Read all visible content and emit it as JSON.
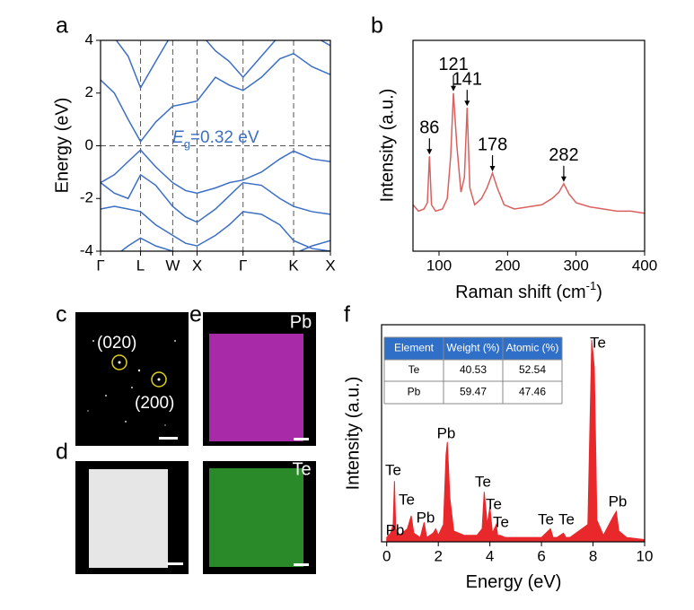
{
  "panel_labels": [
    "a",
    "b",
    "c",
    "d",
    "e",
    "f"
  ],
  "images": {
    "c": {
      "labels": [
        "(020)",
        "(200)"
      ]
    },
    "e": {
      "labels": [
        "Pb",
        "Te"
      ]
    }
  },
  "chart_data": [
    {
      "type": "line",
      "ylabel": "Energy (eV)",
      "color": "#3c6fc4",
      "xlim": [
        0,
        5
      ],
      "ylim": [
        -4,
        4
      ],
      "yticks": [
        -4,
        -2,
        0,
        2,
        4
      ],
      "xticks": [
        {
          "value": 0,
          "label": "Γ"
        },
        {
          "value": 0.87,
          "label": "L"
        },
        {
          "value": 1.57,
          "label": "W"
        },
        {
          "value": 2.1,
          "label": "X"
        },
        {
          "value": 3.1,
          "label": "Γ"
        },
        {
          "value": 4.2,
          "label": "K"
        },
        {
          "value": 5,
          "label": "X"
        }
      ],
      "xgrid": "dashed",
      "hline": 0,
      "annotation": [
        "E",
        "g",
        "=0.32 eV"
      ],
      "x": [
        0,
        0.3,
        0.6,
        0.87,
        1.2,
        1.57,
        1.85,
        2.1,
        2.5,
        2.8,
        3.1,
        3.5,
        3.9,
        4.2,
        4.6,
        5
      ],
      "series": [
        {
          "values": [
            2.5,
            2.0,
            1.0,
            0.16,
            0.9,
            1.5,
            1.6,
            1.7,
            2.6,
            2.3,
            2.1,
            2.6,
            3.3,
            3.5,
            3.0,
            2.7
          ]
        },
        {
          "values": [
            4.3,
            4.1,
            3.4,
            2.2,
            3.2,
            4.3,
            4.5,
            4.4,
            3.6,
            3.2,
            2.6,
            3.4,
            4.2,
            4.5,
            4.2,
            3.8
          ]
        },
        {
          "values": [
            -1.4,
            -1.1,
            -0.6,
            -0.16,
            -0.8,
            -1.4,
            -1.7,
            -1.8,
            -1.6,
            -1.4,
            -1.3,
            -1.0,
            -0.5,
            -0.2,
            -0.5,
            -0.6
          ]
        },
        {
          "values": [
            -1.4,
            -1.8,
            -2.0,
            -1.1,
            -1.5,
            -2.3,
            -2.7,
            -2.9,
            -2.4,
            -1.9,
            -1.4,
            -1.5,
            -2.0,
            -2.3,
            -2.5,
            -2.6
          ]
        },
        {
          "values": [
            -2.4,
            -2.3,
            -2.4,
            -2.5,
            -3.0,
            -3.4,
            -3.7,
            -3.8,
            -3.4,
            -3.0,
            -2.5,
            -2.6,
            -3.0,
            -3.6,
            -3.9,
            -4.0
          ]
        },
        {
          "values": [
            -4.5,
            -4.2,
            -3.8,
            -3.5,
            -3.8,
            -4.0,
            -4.5,
            -4.6,
            -4.4,
            -4.1,
            -4.0,
            -4.1,
            -4.3,
            -4.1,
            -3.8,
            -3.6
          ]
        }
      ]
    },
    {
      "type": "line",
      "ylabel": "Intensity (a.u.)",
      "xlabel": [
        "Raman shift (cm",
        "-1",
        ")"
      ],
      "color": "#d9605f",
      "xlim": [
        62,
        400
      ],
      "ylim": [
        0,
        100
      ],
      "xticks": [
        100,
        200,
        300,
        400
      ],
      "peak_labels": [
        86,
        121,
        141,
        178,
        282
      ],
      "x": [
        62,
        70,
        78,
        83,
        86,
        89,
        95,
        105,
        112,
        117,
        121,
        126,
        132,
        137,
        141,
        145,
        152,
        162,
        170,
        178,
        185,
        195,
        210,
        230,
        250,
        265,
        275,
        282,
        290,
        300,
        320,
        340,
        360,
        380,
        400
      ],
      "series": [
        {
          "values": [
            22,
            19,
            20,
            23,
            45,
            22,
            19,
            20,
            25,
            45,
            75,
            50,
            28,
            35,
            68,
            30,
            22,
            25,
            30,
            37,
            30,
            22,
            20,
            21,
            22,
            25,
            28,
            32,
            27,
            23,
            21,
            20,
            19,
            19,
            18
          ]
        }
      ]
    },
    {
      "type": "area",
      "ylabel": "Intensity (a.u.)",
      "xlabel": [
        "Energy (eV)"
      ],
      "color": "#e8282b",
      "xlim": [
        -0.2,
        10
      ],
      "ylim": [
        0,
        100
      ],
      "xticks": [
        0,
        2,
        4,
        6,
        8,
        10
      ],
      "peak_labels": [
        "Te",
        "Te",
        "Pb",
        "Pb",
        "Pb",
        "Te",
        "Te",
        "Te",
        "Te",
        "Te",
        "Te",
        "Pb"
      ],
      "table": {
        "header": [
          "Element",
          "Weight (%)",
          "Atomic (%)"
        ],
        "rows": [
          [
            "Te",
            40.53,
            52.54
          ],
          [
            "Pb",
            59.47,
            47.46
          ]
        ]
      },
      "x": [
        0,
        0.15,
        0.25,
        0.3,
        0.35,
        0.5,
        0.8,
        0.95,
        1.05,
        1.3,
        1.45,
        1.55,
        1.8,
        1.9,
        2.0,
        2.2,
        2.3,
        2.35,
        2.45,
        2.6,
        3.0,
        3.5,
        3.7,
        3.78,
        3.9,
        4.0,
        4.1,
        4.25,
        4.3,
        4.4,
        4.6,
        5.0,
        6.0,
        6.35,
        6.45,
        6.6,
        6.85,
        6.95,
        7.1,
        7.8,
        7.95,
        8.05,
        8.15,
        8.4,
        8.8,
        8.9,
        9.0,
        9.3,
        10
      ],
      "series": [
        {
          "values": [
            2,
            4,
            8,
            28,
            6,
            3,
            6,
            12,
            4,
            2,
            9,
            2,
            4,
            6,
            3,
            8,
            40,
            46,
            20,
            5,
            3,
            3,
            6,
            23,
            8,
            16,
            4,
            8,
            3,
            3,
            2,
            2,
            2,
            6,
            2,
            2,
            4,
            2,
            2,
            8,
            93,
            80,
            10,
            3,
            12,
            14,
            5,
            2,
            1
          ]
        }
      ]
    }
  ]
}
